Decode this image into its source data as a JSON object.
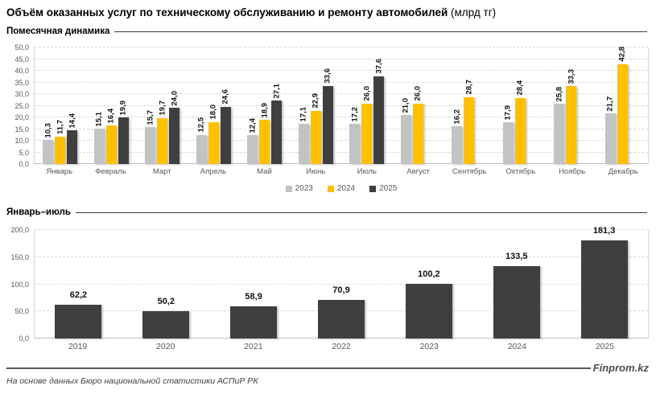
{
  "title": {
    "main": "Объём оказанных услуг по техническому обслуживанию и ремонту автомобилей",
    "unit": "(млрд тг)"
  },
  "colors": {
    "series_2023": "#C3C3C3",
    "series_2024": "#FFC000",
    "series_2025": "#3F3F3F",
    "grid": "#D9D9D9",
    "axis_text": "#595959"
  },
  "chart_data": [
    {
      "type": "bar",
      "title": "Помесячная динамика",
      "categories": [
        "Январь",
        "Февраль",
        "Март",
        "Апрель",
        "Май",
        "Июнь",
        "Июль",
        "Август",
        "Сентябрь",
        "Октябрь",
        "Ноябрь",
        "Декабрь"
      ],
      "series": [
        {
          "name": "2023",
          "color": "#C3C3C3",
          "values": [
            10.3,
            15.1,
            15.7,
            12.5,
            12.4,
            17.1,
            17.2,
            21.0,
            16.2,
            17.9,
            25.8,
            21.7
          ]
        },
        {
          "name": "2024",
          "color": "#FFC000",
          "values": [
            11.7,
            16.4,
            19.7,
            18.0,
            18.9,
            22.9,
            26.0,
            26.0,
            28.7,
            28.4,
            33.3,
            42.8
          ]
        },
        {
          "name": "2025",
          "color": "#3F3F3F",
          "values": [
            14.4,
            19.9,
            24.0,
            24.6,
            27.1,
            33.6,
            37.6,
            null,
            null,
            null,
            null,
            null
          ]
        }
      ],
      "ylim": [
        0,
        50
      ],
      "ytick_step": 5,
      "grid": "dashed-horizontal",
      "legend_position": "bottom",
      "value_labels": "rotated-90"
    },
    {
      "type": "bar",
      "title": "Январь–июль",
      "categories": [
        "2019",
        "2020",
        "2021",
        "2022",
        "2023",
        "2024",
        "2025"
      ],
      "values": [
        62.2,
        50.2,
        58.9,
        70.9,
        100.2,
        133.5,
        181.3
      ],
      "bar_color": "#3F3F3F",
      "ylim": [
        0,
        200
      ],
      "ytick_step": 50,
      "grid": "dashed-horizontal",
      "legend_position": "none",
      "value_labels": "horizontal-bold"
    }
  ],
  "footer": {
    "source": "На основе данных Бюро национальной статистики АСПиР РК",
    "brand": "Finprom.kz"
  }
}
